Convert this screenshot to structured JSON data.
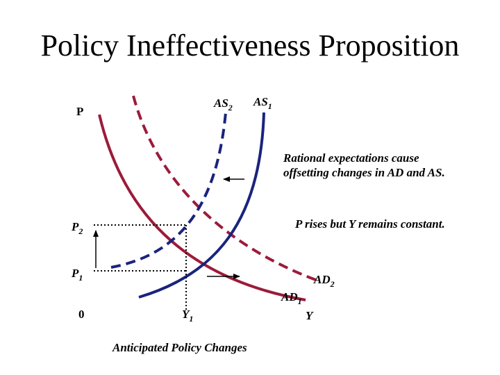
{
  "title": "Policy Ineffectiveness Proposition",
  "axes": {
    "y_label": "P",
    "x_label": "Y",
    "origin": "0"
  },
  "curves": {
    "as1": {
      "base": "AS",
      "sub": "1"
    },
    "as2": {
      "base": "AS",
      "sub": "2"
    },
    "ad1": {
      "base": "AD",
      "sub": "1"
    },
    "ad2": {
      "base": "AD",
      "sub": "2"
    }
  },
  "levels": {
    "p1": {
      "base": "P",
      "sub": "1"
    },
    "p2": {
      "base": "P",
      "sub": "2"
    },
    "y1": {
      "base": "Y",
      "sub": "1"
    }
  },
  "notes": {
    "rational": "Rational expectations cause offsetting changes in AD and AS.",
    "p_rises": "P rises but Y remains constant."
  },
  "caption": "Anticipated Policy Changes",
  "colors": {
    "as": "#1a237e",
    "ad": "#9c1b3a",
    "text": "#000000"
  }
}
